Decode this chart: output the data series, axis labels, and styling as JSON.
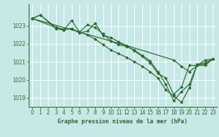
{
  "background_color": "#c8e8e8",
  "grid_color": "#aad4d4",
  "line_color": "#2d6a2d",
  "title": "Graphe pression niveau de la mer (hPa)",
  "xlim": [
    -0.5,
    23.5
  ],
  "ylim": [
    1018.5,
    1024.2
  ],
  "yticks": [
    1019,
    1020,
    1021,
    1022,
    1023
  ],
  "xticks": [
    0,
    1,
    2,
    3,
    4,
    5,
    6,
    7,
    8,
    9,
    10,
    11,
    12,
    13,
    14,
    15,
    16,
    17,
    18,
    19,
    20,
    21,
    22,
    23
  ],
  "series": [
    {
      "x": [
        0,
        1,
        3,
        4,
        5,
        6,
        7,
        8,
        9,
        10,
        11,
        12,
        13,
        14,
        15,
        16,
        17,
        18,
        19,
        20,
        21,
        22,
        23
      ],
      "y": [
        1023.4,
        1023.6,
        1022.85,
        1022.75,
        1023.3,
        1022.65,
        1023.05,
        1022.9,
        1022.55,
        1022.15,
        1021.95,
        1021.85,
        1021.65,
        1021.35,
        1021.05,
        1020.45,
        1019.75,
        1018.85,
        1019.35,
        1019.75,
        1020.85,
        1020.95,
        1021.15
      ]
    },
    {
      "x": [
        0,
        1,
        3,
        4,
        5,
        6,
        7,
        8,
        9,
        10,
        11,
        12,
        13,
        14,
        15,
        16,
        17,
        18,
        19,
        20,
        21,
        22,
        23
      ],
      "y": [
        1023.4,
        1023.6,
        1022.9,
        1022.8,
        1022.85,
        1022.6,
        1022.7,
        1023.15,
        1022.45,
        1022.35,
        1022.1,
        1021.9,
        1021.6,
        1021.3,
        1020.95,
        1020.35,
        1020.1,
        1019.2,
        1019.6,
        1020.8,
        1020.8,
        1020.8,
        1021.15
      ]
    },
    {
      "x": [
        0,
        3,
        4,
        5,
        6,
        7,
        8,
        9,
        10,
        11,
        12,
        13,
        14,
        15,
        16,
        17,
        18,
        19,
        20,
        21,
        22,
        23
      ],
      "y": [
        1023.4,
        1022.9,
        1022.8,
        1022.82,
        1022.65,
        1022.5,
        1022.25,
        1021.95,
        1021.65,
        1021.45,
        1021.25,
        1021.0,
        1020.75,
        1020.45,
        1020.1,
        1019.45,
        1019.1,
        1018.75,
        1019.55,
        1020.85,
        1020.85,
        1021.15
      ]
    },
    {
      "x": [
        0,
        6,
        12,
        18,
        19,
        20,
        21,
        22,
        23
      ],
      "y": [
        1023.4,
        1022.65,
        1021.9,
        1021.1,
        1020.75,
        1020.45,
        1020.8,
        1021.1,
        1021.15
      ]
    }
  ]
}
